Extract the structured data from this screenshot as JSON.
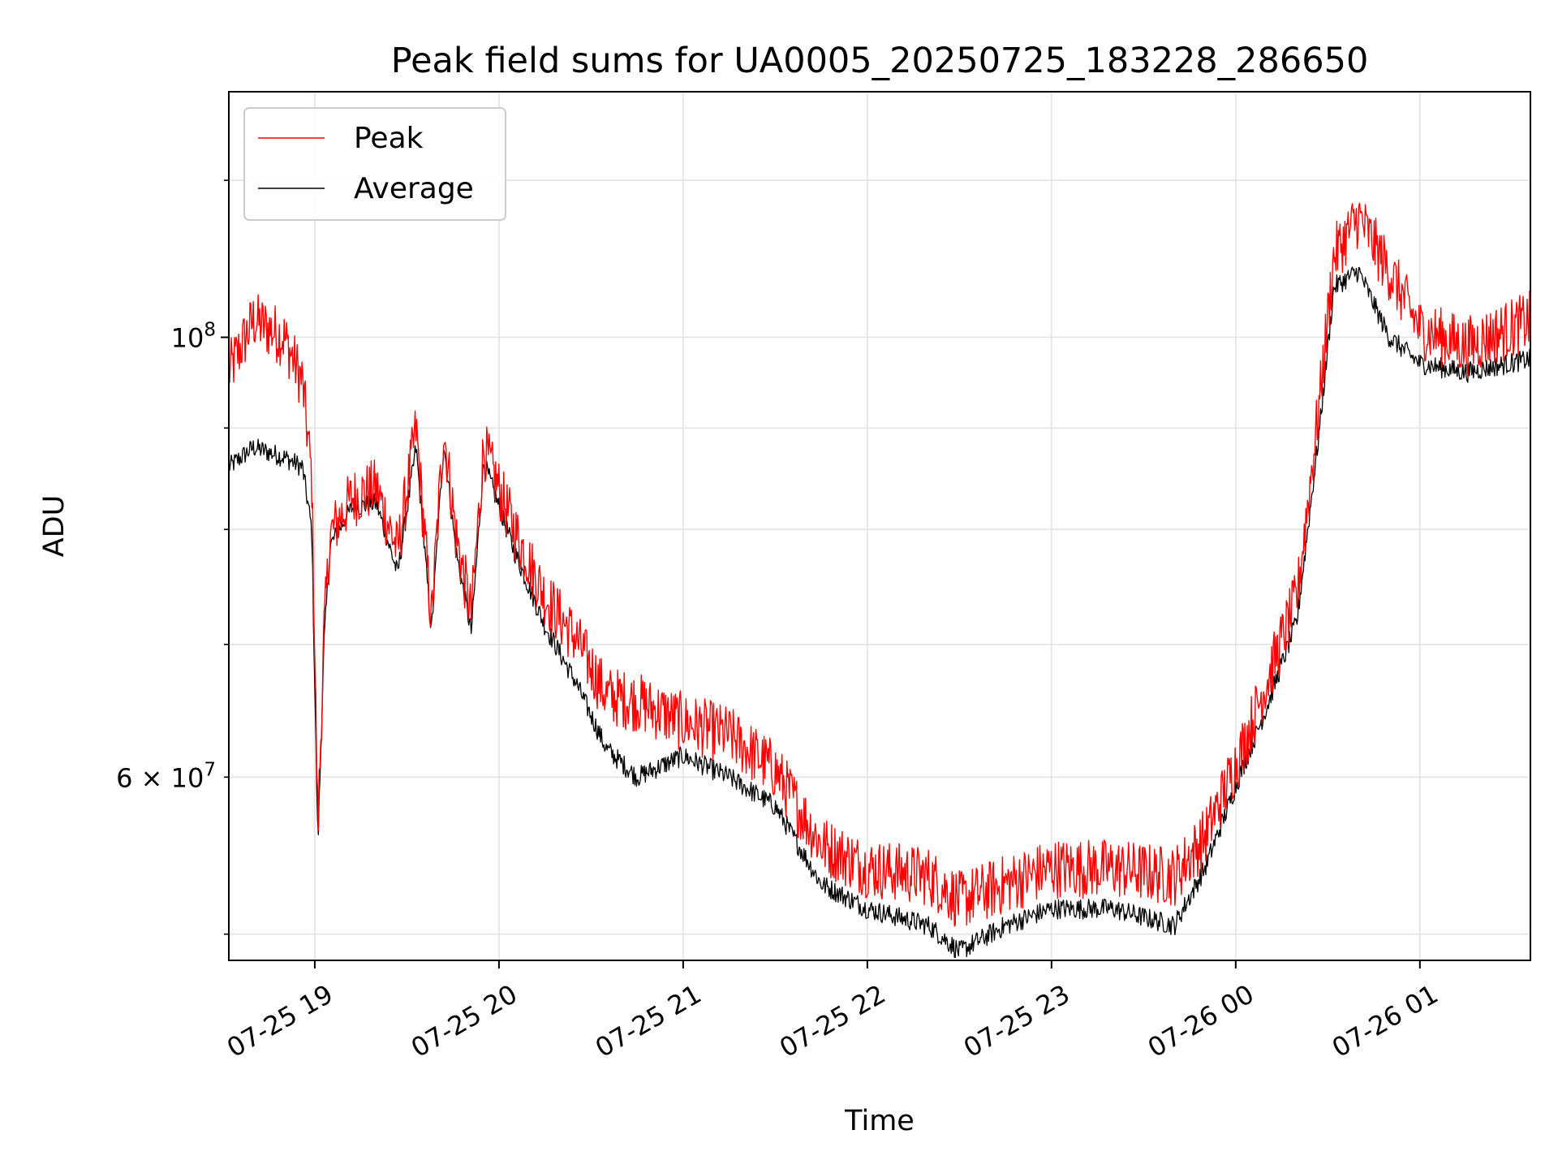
{
  "chart_data": {
    "type": "line",
    "title": "Peak field sums for UA0005_20250725_183228_286650",
    "xlabel": "Time",
    "ylabel": "ADU",
    "yscale": "log",
    "ylim": [
      48500000,
      133000000
    ],
    "xlim": [
      "2025-07-25 18:32",
      "2025-07-26 01:36"
    ],
    "grid": true,
    "legend_position": "top-left",
    "x_ticks": [
      "07-25 19",
      "07-25 20",
      "07-25 21",
      "07-25 22",
      "07-25 23",
      "07-26 00",
      "07-26 01"
    ],
    "y_ticks_major": [
      {
        "value": 100000000,
        "mantissa": "10",
        "exponent": "8"
      }
    ],
    "y_ticks_minor": [
      {
        "value": 60000000,
        "mantissa": "6 × 10",
        "exponent": "7"
      }
    ],
    "series": [
      {
        "name": "Peak",
        "color": "#ff0000",
        "x": [
          "2025-07-25 18:32",
          "2025-07-25 18:40",
          "2025-07-25 18:50",
          "2025-07-25 18:56",
          "2025-07-25 18:59",
          "2025-07-25 19:01",
          "2025-07-25 19:03",
          "2025-07-25 19:05",
          "2025-07-25 19:06",
          "2025-07-25 19:12",
          "2025-07-25 19:20",
          "2025-07-25 19:27",
          "2025-07-25 19:33",
          "2025-07-25 19:38",
          "2025-07-25 19:42",
          "2025-07-25 19:46",
          "2025-07-25 19:51",
          "2025-07-25 19:55",
          "2025-07-25 20:05",
          "2025-07-25 20:15",
          "2025-07-25 20:25",
          "2025-07-25 20:35",
          "2025-07-25 20:45",
          "2025-07-25 21:00",
          "2025-07-25 21:15",
          "2025-07-25 21:30",
          "2025-07-25 21:45",
          "2025-07-25 22:00",
          "2025-07-25 22:20",
          "2025-07-25 22:30",
          "2025-07-25 22:45",
          "2025-07-25 23:00",
          "2025-07-25 23:20",
          "2025-07-25 23:40",
          "2025-07-25 23:50",
          "2025-07-26 00:02",
          "2025-07-26 00:10",
          "2025-07-26 00:20",
          "2025-07-26 00:27",
          "2025-07-26 00:32",
          "2025-07-26 00:40",
          "2025-07-26 00:50",
          "2025-07-26 01:00",
          "2025-07-26 01:15",
          "2025-07-26 01:36"
        ],
        "y": [
          96000000,
          102000000,
          100000000,
          95000000,
          85000000,
          56500000,
          71000000,
          79500000,
          80000000,
          83000000,
          84000000,
          78000000,
          90000000,
          72000000,
          90000000,
          79500000,
          72500000,
          88000000,
          80000000,
          74000000,
          70500000,
          66000000,
          65500000,
          64000000,
          63000000,
          60500000,
          55500000,
          54000000,
          53500000,
          52000000,
          53000000,
          54000000,
          54000000,
          53500000,
          56000000,
          62000000,
          67000000,
          74000000,
          92000000,
          110000000,
          115000000,
          108000000,
          101000000,
          99000000,
          102000000
        ]
      },
      {
        "name": "Average",
        "color": "#000000",
        "x": [
          "2025-07-25 18:32",
          "2025-07-25 18:40",
          "2025-07-25 18:50",
          "2025-07-25 18:56",
          "2025-07-25 18:59",
          "2025-07-25 19:01",
          "2025-07-25 19:03",
          "2025-07-25 19:05",
          "2025-07-25 19:06",
          "2025-07-25 19:12",
          "2025-07-25 19:20",
          "2025-07-25 19:27",
          "2025-07-25 19:33",
          "2025-07-25 19:38",
          "2025-07-25 19:42",
          "2025-07-25 19:46",
          "2025-07-25 19:51",
          "2025-07-25 19:55",
          "2025-07-25 20:05",
          "2025-07-25 20:15",
          "2025-07-25 20:25",
          "2025-07-25 20:35",
          "2025-07-25 20:45",
          "2025-07-25 21:00",
          "2025-07-25 21:15",
          "2025-07-25 21:30",
          "2025-07-25 21:45",
          "2025-07-25 22:00",
          "2025-07-25 22:20",
          "2025-07-25 22:30",
          "2025-07-25 22:45",
          "2025-07-25 23:00",
          "2025-07-25 23:20",
          "2025-07-25 23:40",
          "2025-07-25 23:50",
          "2025-07-26 00:02",
          "2025-07-26 00:10",
          "2025-07-26 00:20",
          "2025-07-26 00:27",
          "2025-07-26 00:32",
          "2025-07-26 00:40",
          "2025-07-26 00:50",
          "2025-07-26 01:00",
          "2025-07-26 01:15",
          "2025-07-26 01:36"
        ],
        "y": [
          86000000,
          88000000,
          87000000,
          86000000,
          80000000,
          55500000,
          70000000,
          78500000,
          79000000,
          82000000,
          82500000,
          76000000,
          88000000,
          71000000,
          88500000,
          78000000,
          71000000,
          86500000,
          78000000,
          71500000,
          67000000,
          62000000,
          60000000,
          61500000,
          60000000,
          58000000,
          53000000,
          51500000,
          50500000,
          49000000,
          50500000,
          51500000,
          51500000,
          50500000,
          54000000,
          60500000,
          65000000,
          72000000,
          89000000,
          106000000,
          108000000,
          100000000,
          97000000,
          96000000,
          97500000
        ]
      }
    ]
  }
}
